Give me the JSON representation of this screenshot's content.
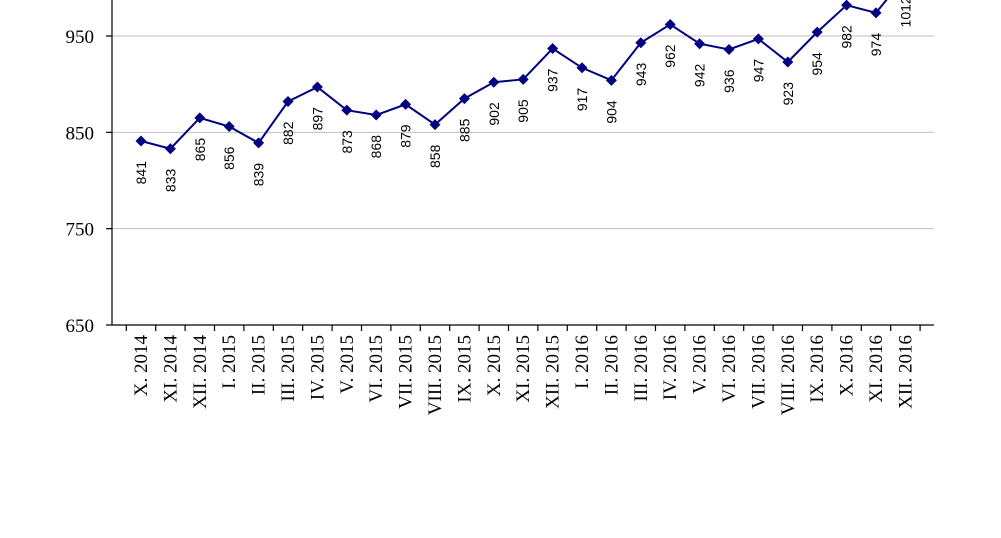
{
  "chart_data": {
    "type": "line",
    "title": "",
    "xlabel": "",
    "ylabel": "",
    "ylim": [
      650,
      1050
    ],
    "yticks": [
      650,
      750,
      850,
      950
    ],
    "grid": true,
    "legend": "none",
    "colors": {
      "series": "#000080",
      "grid": "#c0c0c0",
      "axis": "#000000"
    },
    "categories": [
      "X. 2014",
      "XI. 2014",
      "XII. 2014",
      "I. 2015",
      "II. 2015",
      "III. 2015",
      "IV. 2015",
      "V. 2015",
      "VI. 2015",
      "VII. 2015",
      "VIII. 2015",
      "IX. 2015",
      "X. 2015",
      "XI. 2015",
      "XII. 2015",
      "I. 2016",
      "II. 2016",
      "III. 2016",
      "IV. 2016",
      "V. 2016",
      "VI. 2016",
      "VII. 2016",
      "VIII. 2016",
      "IX. 2016",
      "X. 2016",
      "XI. 2016",
      "XII. 2016"
    ],
    "series": [
      {
        "values": [
          841,
          833,
          865,
          856,
          839,
          882,
          897,
          873,
          868,
          879,
          858,
          885,
          902,
          905,
          937,
          917,
          904,
          943,
          962,
          942,
          936,
          947,
          923,
          954,
          982,
          974,
          1012
        ]
      }
    ]
  }
}
